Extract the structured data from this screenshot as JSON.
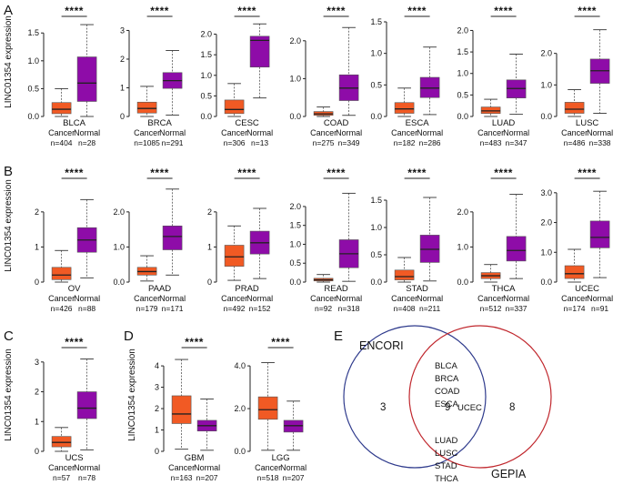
{
  "figure": {
    "y_axis_label": "LINC01354 expression",
    "significance": "****",
    "group_cancer": "Cancer",
    "group_normal": "Normal"
  },
  "colors": {
    "cancer": "#f15a24",
    "normal": "#8e0ca8",
    "encori": "#2e3a8c",
    "gepia": "#c0262c"
  },
  "chart_data": [
    {
      "panel": "A",
      "type": "box",
      "name": "BLCA",
      "ylim": [
        0,
        1.7
      ],
      "ticks": [
        0,
        0.5,
        1.0,
        1.5
      ],
      "tick_labels": [
        "0.0",
        "0.5",
        "1.0",
        "1.5"
      ],
      "cancer": {
        "min": 0,
        "q1": 0.05,
        "median": 0.13,
        "q3": 0.25,
        "max": 0.5,
        "n_label": "n=404"
      },
      "normal": {
        "min": 0,
        "q1": 0.27,
        "median": 0.6,
        "q3": 1.07,
        "max": 1.65,
        "n_label": "n=28"
      }
    },
    {
      "panel": "A",
      "type": "box",
      "name": "BRCA",
      "ylim": [
        0,
        3.3
      ],
      "ticks": [
        0,
        1,
        2,
        3
      ],
      "tick_labels": [
        "0",
        "1",
        "2",
        "3"
      ],
      "cancer": {
        "min": 0,
        "q1": 0.12,
        "median": 0.28,
        "q3": 0.5,
        "max": 1.05,
        "n_label": "n=1085"
      },
      "normal": {
        "min": 0.05,
        "q1": 0.98,
        "median": 1.25,
        "q3": 1.53,
        "max": 2.3,
        "n_label": "n=291"
      }
    },
    {
      "panel": "A",
      "type": "box",
      "name": "CESC",
      "ylim": [
        0,
        2.3
      ],
      "ticks": [
        0,
        0.5,
        1.0,
        1.5,
        2.0
      ],
      "tick_labels": [
        "0.0",
        "0.5",
        "1.0",
        "1.5",
        "2.0"
      ],
      "cancer": {
        "min": 0,
        "q1": 0.07,
        "median": 0.17,
        "q3": 0.4,
        "max": 0.8,
        "n_label": "n=306"
      },
      "normal": {
        "min": 0.45,
        "q1": 1.2,
        "median": 1.85,
        "q3": 1.95,
        "max": 2.25,
        "n_label": "n=13"
      }
    },
    {
      "panel": "A",
      "type": "box",
      "name": "COAD",
      "ylim": [
        0,
        2.5
      ],
      "ticks": [
        0,
        1.0,
        2.0
      ],
      "tick_labels": [
        "0.0",
        "1.0",
        "2.0"
      ],
      "cancer": {
        "min": 0,
        "q1": 0.03,
        "median": 0.07,
        "q3": 0.13,
        "max": 0.25,
        "n_label": "n=275"
      },
      "normal": {
        "min": 0.03,
        "q1": 0.42,
        "median": 0.75,
        "q3": 1.1,
        "max": 2.35,
        "n_label": "n=349"
      }
    },
    {
      "panel": "A",
      "type": "box",
      "name": "ESCA",
      "ylim": [
        0,
        1.5
      ],
      "ticks": [
        0,
        0.5,
        1.0,
        1.5
      ],
      "tick_labels": [
        "0.0",
        "0.5",
        "1.0",
        "1.5"
      ],
      "cancer": {
        "min": 0,
        "q1": 0.05,
        "median": 0.12,
        "q3": 0.22,
        "max": 0.45,
        "n_label": "n=182"
      },
      "normal": {
        "min": 0.03,
        "q1": 0.3,
        "median": 0.45,
        "q3": 0.62,
        "max": 1.1,
        "n_label": "n=286"
      }
    },
    {
      "panel": "A",
      "type": "box",
      "name": "LUAD",
      "ylim": [
        0,
        2.2
      ],
      "ticks": [
        0,
        0.5,
        1.0,
        1.5,
        2.0
      ],
      "tick_labels": [
        "0.0",
        "0.5",
        "1.0",
        "1.5",
        "2.0"
      ],
      "cancer": {
        "min": 0,
        "q1": 0.07,
        "median": 0.13,
        "q3": 0.22,
        "max": 0.4,
        "n_label": "n=483"
      },
      "normal": {
        "min": 0.05,
        "q1": 0.43,
        "median": 0.65,
        "q3": 0.85,
        "max": 1.45,
        "n_label": "n=347"
      }
    },
    {
      "panel": "A",
      "type": "box",
      "name": "LUSC",
      "ylim": [
        0,
        3.0
      ],
      "ticks": [
        0,
        1.0,
        2.0
      ],
      "tick_labels": [
        "0.0",
        "1.0",
        "2.0"
      ],
      "cancer": {
        "min": 0,
        "q1": 0.1,
        "median": 0.23,
        "q3": 0.45,
        "max": 0.85,
        "n_label": "n=486"
      },
      "normal": {
        "min": 0.1,
        "q1": 1.05,
        "median": 1.45,
        "q3": 1.82,
        "max": 2.75,
        "n_label": "n=338"
      }
    },
    {
      "panel": "B",
      "type": "box",
      "name": "OV",
      "ylim": [
        0,
        2.8
      ],
      "ticks": [
        0,
        1,
        2
      ],
      "tick_labels": [
        "0",
        "1",
        "2"
      ],
      "cancer": {
        "min": 0,
        "q1": 0.07,
        "median": 0.2,
        "q3": 0.42,
        "max": 0.9,
        "n_label": "n=426"
      },
      "normal": {
        "min": 0.12,
        "q1": 0.85,
        "median": 1.2,
        "q3": 1.55,
        "max": 2.35,
        "n_label": "n=88"
      }
    },
    {
      "panel": "B",
      "type": "box",
      "name": "PAAD",
      "ylim": [
        0,
        2.8
      ],
      "ticks": [
        0,
        1.0,
        2.0
      ],
      "tick_labels": [
        "0.0",
        "1.0",
        "2.0"
      ],
      "cancer": {
        "min": 0.03,
        "q1": 0.2,
        "median": 0.3,
        "q3": 0.42,
        "max": 0.75,
        "n_label": "n=179"
      },
      "normal": {
        "min": 0.2,
        "q1": 0.92,
        "median": 1.3,
        "q3": 1.6,
        "max": 2.65,
        "n_label": "n=171"
      }
    },
    {
      "panel": "B",
      "type": "box",
      "name": "PRAD",
      "ylim": [
        0,
        2.8
      ],
      "ticks": [
        0,
        1,
        2
      ],
      "tick_labels": [
        "0",
        "1",
        "2"
      ],
      "cancer": {
        "min": 0.05,
        "q1": 0.45,
        "median": 0.72,
        "q3": 1.05,
        "max": 1.6,
        "n_label": "n=492"
      },
      "normal": {
        "min": 0.1,
        "q1": 0.8,
        "median": 1.12,
        "q3": 1.45,
        "max": 2.1,
        "n_label": "n=152"
      }
    },
    {
      "panel": "B",
      "type": "box",
      "name": "READ",
      "ylim": [
        0,
        2.6
      ],
      "ticks": [
        0,
        0.5,
        1.0,
        1.5,
        2.0
      ],
      "tick_labels": [
        "0.0",
        "0.5",
        "1.0",
        "1.5",
        "2.0"
      ],
      "cancer": {
        "min": 0,
        "q1": 0.03,
        "median": 0.06,
        "q3": 0.1,
        "max": 0.2,
        "n_label": "n=92"
      },
      "normal": {
        "min": 0.02,
        "q1": 0.38,
        "median": 0.75,
        "q3": 1.12,
        "max": 2.35,
        "n_label": "n=318"
      }
    },
    {
      "panel": "B",
      "type": "box",
      "name": "STAD",
      "ylim": [
        0,
        1.8
      ],
      "ticks": [
        0,
        0.5,
        1.0,
        1.5
      ],
      "tick_labels": [
        "0.0",
        "0.5",
        "1.0",
        "1.5"
      ],
      "cancer": {
        "min": 0,
        "q1": 0.04,
        "median": 0.1,
        "q3": 0.22,
        "max": 0.45,
        "n_label": "n=408"
      },
      "normal": {
        "min": 0.02,
        "q1": 0.36,
        "median": 0.6,
        "q3": 0.86,
        "max": 1.55,
        "n_label": "n=211"
      }
    },
    {
      "panel": "B",
      "type": "box",
      "name": "THCA",
      "ylim": [
        0,
        2.8
      ],
      "ticks": [
        0,
        1.0,
        2.0
      ],
      "tick_labels": [
        "0.0",
        "1.0",
        "2.0"
      ],
      "cancer": {
        "min": 0,
        "q1": 0.1,
        "median": 0.18,
        "q3": 0.27,
        "max": 0.5,
        "n_label": "n=512"
      },
      "normal": {
        "min": 0.1,
        "q1": 0.6,
        "median": 0.9,
        "q3": 1.3,
        "max": 2.5,
        "n_label": "n=337"
      }
    },
    {
      "panel": "B",
      "type": "box",
      "name": "UCEC",
      "ylim": [
        0,
        3.3
      ],
      "ticks": [
        0,
        1.0,
        2.0,
        3.0
      ],
      "tick_labels": [
        "0.0",
        "1.0",
        "2.0",
        "3.0"
      ],
      "cancer": {
        "min": 0,
        "q1": 0.12,
        "median": 0.28,
        "q3": 0.55,
        "max": 1.1,
        "n_label": "n=174"
      },
      "normal": {
        "min": 0.15,
        "q1": 1.15,
        "median": 1.5,
        "q3": 2.05,
        "max": 3.05,
        "n_label": "n=91"
      }
    },
    {
      "panel": "C",
      "type": "box",
      "name": "UCS",
      "ylim": [
        0,
        3.3
      ],
      "ticks": [
        0,
        1,
        2,
        3
      ],
      "tick_labels": [
        "0",
        "1",
        "2",
        "3"
      ],
      "cancer": {
        "min": 0,
        "q1": 0.15,
        "median": 0.3,
        "q3": 0.5,
        "max": 0.8,
        "n_label": "n=57"
      },
      "normal": {
        "min": 0.05,
        "q1": 1.1,
        "median": 1.45,
        "q3": 2.0,
        "max": 3.1,
        "n_label": "n=78"
      }
    },
    {
      "panel": "D",
      "type": "box",
      "name": "GBM",
      "ylim": [
        0,
        4.6
      ],
      "ticks": [
        0,
        1,
        2,
        3,
        4
      ],
      "tick_labels": [
        "0",
        "1",
        "2",
        "3",
        "4"
      ],
      "cancer": {
        "min": 0.1,
        "q1": 1.3,
        "median": 1.75,
        "q3": 2.6,
        "max": 4.3,
        "n_label": "n=163"
      },
      "normal": {
        "min": 0.05,
        "q1": 0.95,
        "median": 1.2,
        "q3": 1.45,
        "max": 2.45,
        "n_label": "n=207"
      }
    },
    {
      "panel": "D",
      "type": "box",
      "name": "LGG",
      "ylim": [
        0,
        4.6
      ],
      "ticks": [
        0,
        2.0,
        4.0
      ],
      "tick_labels": [
        "0.0",
        "2.0",
        "4.0"
      ],
      "cancer": {
        "min": 0.05,
        "q1": 1.5,
        "median": 1.95,
        "q3": 2.55,
        "max": 4.15,
        "n_label": "n=518"
      },
      "normal": {
        "min": 0.05,
        "q1": 0.9,
        "median": 1.2,
        "q3": 1.45,
        "max": 2.35,
        "n_label": "n=207"
      }
    }
  ],
  "venn": {
    "left_label": "ENCORI",
    "right_label": "GEPIA",
    "left_only": "3",
    "right_only": "8",
    "overlap_count": "9",
    "overlap_items": [
      "BLCA",
      "BRCA",
      "COAD",
      "ESCA",
      "LUAD",
      "LUSC",
      "STAD",
      "THCA"
    ],
    "overlap_side_item": "UCEC"
  }
}
